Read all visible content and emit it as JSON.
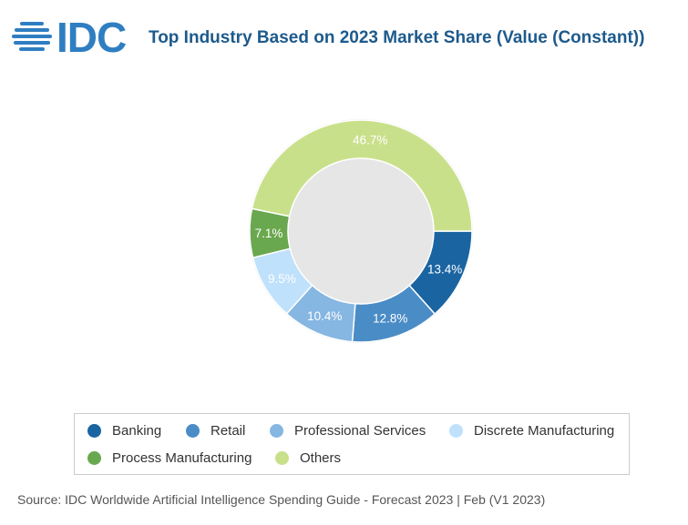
{
  "header": {
    "logo_text": "IDC",
    "title": "Top Industry Based on 2023 Market Share (Value (Constant))"
  },
  "chart_data": {
    "type": "pie",
    "variant": "donut",
    "title": "Top Industry Based on 2023 Market Share (Value (Constant))",
    "categories": [
      "Banking",
      "Retail",
      "Professional Services",
      "Discrete Manufacturing",
      "Process Manufacturing",
      "Others"
    ],
    "values": [
      13.4,
      12.8,
      10.4,
      9.5,
      7.1,
      46.7
    ],
    "labels": [
      "13.4%",
      "12.8%",
      "10.4%",
      "9.5%",
      "7.1%",
      "46.7%"
    ],
    "colors": [
      "#1a64a2",
      "#4a8cc6",
      "#86b6e2",
      "#bfe1fb",
      "#6aa84f",
      "#c9e08b"
    ],
    "legend_position": "bottom"
  },
  "legend": {
    "items": [
      "Banking",
      "Retail",
      "Professional Services",
      "Discrete Manufacturing",
      "Process Manufacturing",
      "Others"
    ]
  },
  "footer": {
    "source": "Source: IDC Worldwide Artificial Intelligence Spending Guide - Forecast 2023 | Feb (V1 2023)"
  }
}
